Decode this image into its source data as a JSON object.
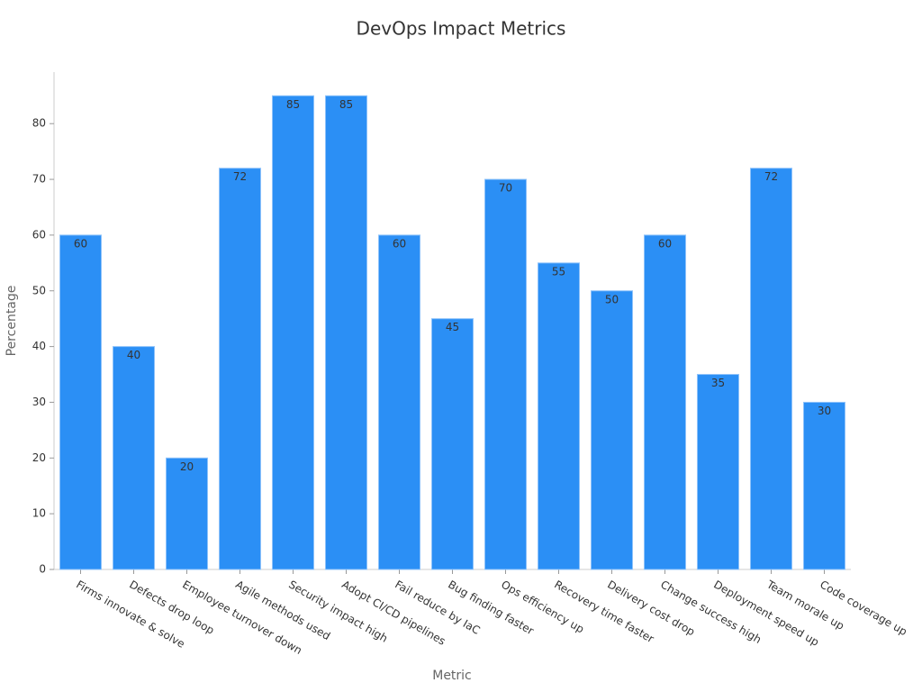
{
  "chart_data": {
    "type": "bar",
    "title": "DevOps Impact Metrics",
    "x_label": "Metric",
    "y_label": "Percentage",
    "categories": [
      "Firms innovate & solve",
      "Defects drop loop",
      "Employee turnover down",
      "Agile methods used",
      "Security impact high",
      "Adopt CI/CD pipelines",
      "Fail reduce by IaC",
      "Bug finding faster",
      "Ops efficiency up",
      "Recovery time faster",
      "Delivery cost drop",
      "Change success high",
      "Deployment speed up",
      "Team morale up",
      "Code coverage up"
    ],
    "values": [
      60,
      40,
      20,
      72,
      85,
      85,
      60,
      45,
      70,
      55,
      50,
      60,
      35,
      72,
      30
    ],
    "color": "#2b8ff5",
    "ylim": [
      0,
      89.25
    ],
    "yticks": [
      0,
      10,
      20,
      30,
      40,
      50,
      60,
      70,
      80
    ],
    "grid": false
  }
}
